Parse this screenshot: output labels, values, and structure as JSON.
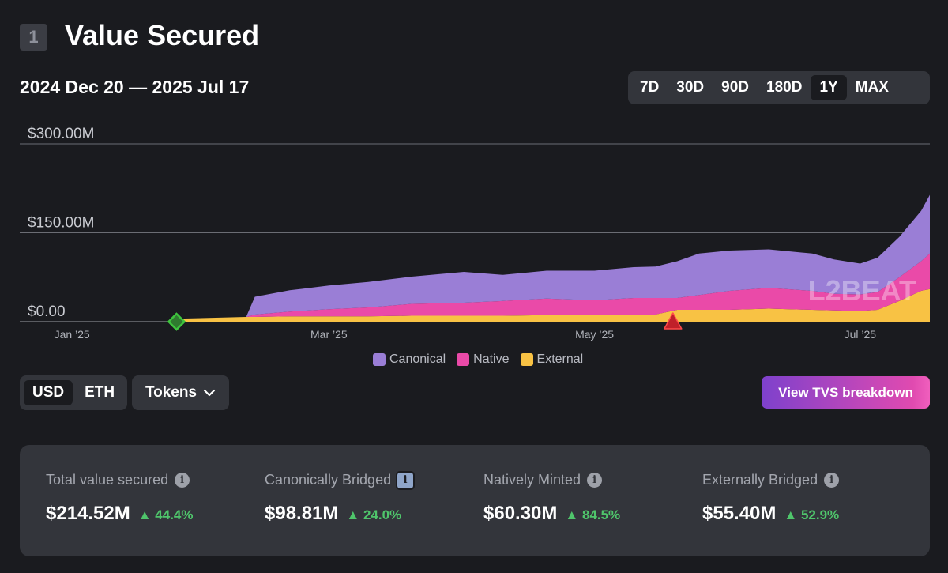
{
  "section": {
    "number": "1",
    "title": "Value Secured"
  },
  "date_range": "2024 Dec 20 — 2025 Jul 17",
  "range_options": [
    "7D",
    "30D",
    "90D",
    "180D",
    "1Y",
    "MAX"
  ],
  "range_selected": "1Y",
  "units": {
    "usd": "USD",
    "eth": "ETH",
    "selected": "USD"
  },
  "tokens_label": "Tokens",
  "breakdown_label": "View TVS breakdown",
  "watermark": "L2BEAT",
  "colors": {
    "canonical": "#9a7ed6",
    "native": "#ea4aa8",
    "external": "#f8c244",
    "positive": "#4fc56b",
    "marker_green": "#3ec43e",
    "marker_red": "#c0202a"
  },
  "stats": [
    {
      "label": "Total value secured",
      "value": "$214.52M",
      "change": "▲ 44.4%",
      "info_icon": "info-icon"
    },
    {
      "label": "Canonically Bridged",
      "value": "$98.81M",
      "change": "▲ 24.0%",
      "info_icon": "info-icon"
    },
    {
      "label": "Natively Minted",
      "value": "$60.30M",
      "change": "▲ 84.5%",
      "info_icon": "info-icon"
    },
    {
      "label": "Externally Bridged",
      "value": "$55.40M",
      "change": "▲ 52.9%",
      "info_icon": "info-icon"
    }
  ],
  "chart_data": {
    "type": "area",
    "stacked": true,
    "title": "Value Secured",
    "ylim": [
      0,
      300
    ],
    "yticks": [
      0,
      150,
      300
    ],
    "ytick_labels": [
      "$0.00",
      "$150.00M",
      "$300.00M"
    ],
    "x_start": "2024-12-20",
    "x_end": "2025-07-17",
    "xtick_labels": [
      "Jan ’25",
      "Mar ’25",
      "May ’25",
      "Jul ’25"
    ],
    "xtick_dates": [
      "2025-01-01",
      "2025-03-01",
      "2025-05-01",
      "2025-07-01"
    ],
    "legend": [
      "Canonical",
      "Native",
      "External"
    ],
    "legend_position": "bottom-center",
    "markers": [
      {
        "date": "2025-01-25",
        "kind": "green-diamond"
      },
      {
        "date": "2025-05-19",
        "kind": "red-triangle"
      }
    ],
    "x": [
      "2025-01-25",
      "2025-02-10",
      "2025-02-12",
      "2025-02-20",
      "2025-03-01",
      "2025-03-10",
      "2025-03-20",
      "2025-04-01",
      "2025-04-10",
      "2025-04-20",
      "2025-05-01",
      "2025-05-10",
      "2025-05-15",
      "2025-05-20",
      "2025-05-25",
      "2025-06-01",
      "2025-06-10",
      "2025-06-20",
      "2025-06-25",
      "2025-07-01",
      "2025-07-05",
      "2025-07-10",
      "2025-07-15",
      "2025-07-17"
    ],
    "series": [
      {
        "name": "External",
        "values": [
          5,
          8,
          8,
          9,
          9,
          9,
          10,
          10,
          10,
          11,
          11,
          12,
          12,
          20,
          20,
          20,
          22,
          20,
          19,
          18,
          20,
          35,
          52,
          55
        ]
      },
      {
        "name": "Native",
        "values": [
          0,
          0,
          4,
          8,
          12,
          15,
          20,
          22,
          25,
          28,
          25,
          28,
          28,
          20,
          25,
          32,
          35,
          32,
          28,
          28,
          30,
          40,
          50,
          60
        ]
      },
      {
        "name": "Canonical",
        "values": [
          0,
          0,
          30,
          36,
          40,
          43,
          46,
          52,
          44,
          47,
          50,
          52,
          53,
          62,
          70,
          68,
          65,
          63,
          58,
          52,
          58,
          68,
          85,
          99
        ]
      }
    ]
  }
}
